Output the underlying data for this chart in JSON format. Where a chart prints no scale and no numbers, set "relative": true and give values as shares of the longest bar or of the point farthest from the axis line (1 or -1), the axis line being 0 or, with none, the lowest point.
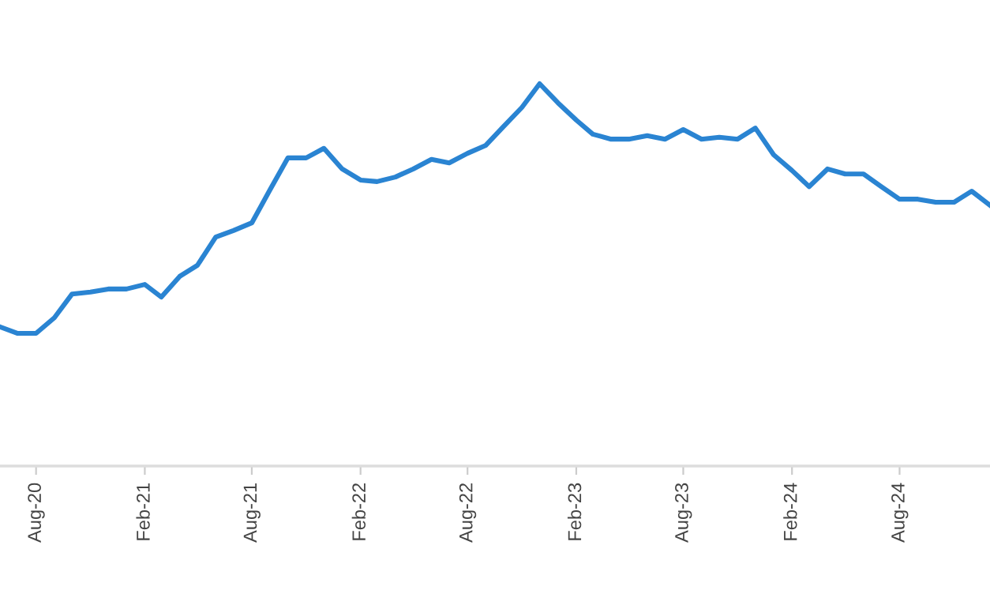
{
  "chart_data": {
    "type": "line",
    "relative": true,
    "grid": false,
    "legend": false,
    "marker": "none",
    "line_style": "solid",
    "x": [
      "2020-06",
      "2020-07",
      "2020-08",
      "2020-09",
      "2020-10",
      "2020-11",
      "2020-12",
      "2021-01",
      "2021-02",
      "2021-03",
      "2021-04",
      "2021-05",
      "2021-06",
      "2021-07",
      "2021-08",
      "2021-09",
      "2021-10",
      "2021-11",
      "2021-12",
      "2022-01",
      "2022-02",
      "2022-03",
      "2022-04",
      "2022-05",
      "2022-06",
      "2022-07",
      "2022-08",
      "2022-09",
      "2022-10",
      "2022-11",
      "2022-12",
      "2023-01",
      "2023-02",
      "2023-03",
      "2023-04",
      "2023-05",
      "2023-06",
      "2023-07",
      "2023-08",
      "2023-09",
      "2023-10",
      "2023-11",
      "2023-12",
      "2024-01",
      "2024-02",
      "2024-03",
      "2024-04",
      "2024-05",
      "2024-06",
      "2024-07",
      "2024-08",
      "2024-09",
      "2024-10",
      "2024-11",
      "2024-12",
      "2025-01"
    ],
    "xlim": [
      "2020-06",
      "2025-01"
    ],
    "xticks": [
      {
        "value": "2020-08",
        "label": "Aug-20"
      },
      {
        "value": "2021-02",
        "label": "Feb-21"
      },
      {
        "value": "2021-08",
        "label": "Aug-21"
      },
      {
        "value": "2022-02",
        "label": "Feb-22"
      },
      {
        "value": "2022-08",
        "label": "Aug-22"
      },
      {
        "value": "2023-02",
        "label": "Feb-23"
      },
      {
        "value": "2023-08",
        "label": "Aug-23"
      },
      {
        "value": "2024-02",
        "label": "Feb-24"
      },
      {
        "value": "2024-08",
        "label": "Aug-24"
      }
    ],
    "series": [
      {
        "color": "#2a84d2",
        "values": [
          0.364,
          0.347,
          0.347,
          0.388,
          0.45,
          0.455,
          0.463,
          0.463,
          0.475,
          0.442,
          0.496,
          0.525,
          0.599,
          0.616,
          0.636,
          0.723,
          0.806,
          0.806,
          0.831,
          0.777,
          0.748,
          0.744,
          0.756,
          0.777,
          0.802,
          0.793,
          0.818,
          0.839,
          0.888,
          0.938,
          1.0,
          0.95,
          0.905,
          0.868,
          0.855,
          0.855,
          0.864,
          0.855,
          0.88,
          0.855,
          0.86,
          0.855,
          0.884,
          0.814,
          0.773,
          0.731,
          0.777,
          0.764,
          0.764,
          0.731,
          0.698,
          0.698,
          0.69,
          0.69,
          0.719,
          0.682
        ]
      }
    ]
  }
}
